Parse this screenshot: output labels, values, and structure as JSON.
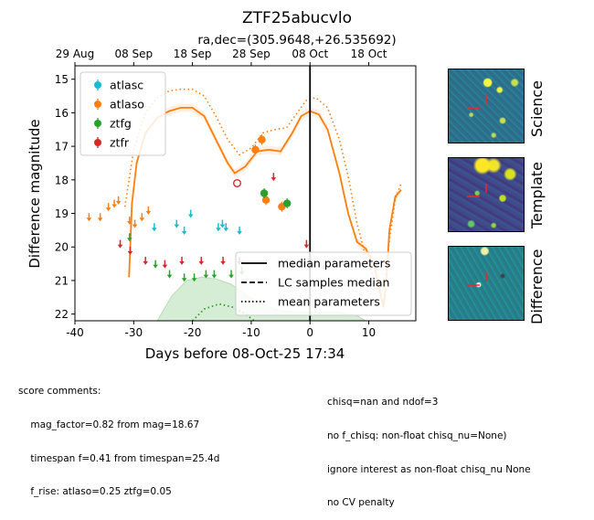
{
  "figure": {
    "title": "ZTF25abucvlo",
    "subtitle": "ra,dec=(305.9648,+26.535692)"
  },
  "colors": {
    "atlasc": "#17becf",
    "atlaso": "#ff7f0e",
    "ztfg": "#2ca02c",
    "ztfr": "#d62728",
    "median_line": "#ff7f0e",
    "g_model": "#2ca02c",
    "now_line": "#000000"
  },
  "chart_data": {
    "type": "scatter",
    "xlabel": "Days before 08-Oct-25 17:34",
    "ylabel": "Difference magnitude",
    "xlim": [
      -40,
      18
    ],
    "ylim": [
      22.2,
      14.6
    ],
    "y_inverted": true,
    "xticks": [
      -40,
      -30,
      -20,
      -10,
      0,
      10
    ],
    "yticks": [
      15,
      16,
      17,
      18,
      19,
      20,
      21,
      22
    ],
    "top_axis": {
      "ticks": [
        {
          "x": -40,
          "label": "29 Aug"
        },
        {
          "x": -30,
          "label": "08 Sep"
        },
        {
          "x": -20,
          "label": "18 Sep"
        },
        {
          "x": -10,
          "label": "28 Sep"
        },
        {
          "x": 0,
          "label": "08 Oct"
        },
        {
          "x": 10,
          "label": "18 Oct"
        }
      ]
    },
    "vertical_line_x": 0,
    "legend_series": {
      "placement": "upper-left",
      "entries": [
        "atlasc",
        "atlaso",
        "ztfg",
        "ztfr"
      ]
    },
    "legend_lines": {
      "placement": "lower-right",
      "entries": [
        {
          "label": "median parameters",
          "style": "solid"
        },
        {
          "label": "LC samples median",
          "style": "dashed"
        },
        {
          "label": "mean parameters",
          "style": "dotted"
        }
      ]
    },
    "series": [
      {
        "name": "atlasc",
        "upper_limits": [
          [
            -26.5,
            19.4
          ],
          [
            -22.7,
            19.3
          ],
          [
            -21.4,
            19.5
          ],
          [
            -20.3,
            19.0
          ],
          [
            -15.6,
            19.4
          ],
          [
            -14.9,
            19.3
          ],
          [
            -14.3,
            19.4
          ],
          [
            -12.0,
            19.5
          ]
        ],
        "detections": []
      },
      {
        "name": "atlaso",
        "upper_limits": [
          [
            -37.6,
            19.1
          ],
          [
            -35.7,
            19.1
          ],
          [
            -34.3,
            18.8
          ],
          [
            -33.3,
            18.7
          ],
          [
            -32.6,
            18.6
          ],
          [
            -30.7,
            19.2
          ],
          [
            -29.8,
            19.3
          ],
          [
            -28.6,
            19.1
          ],
          [
            -27.5,
            18.9
          ]
        ],
        "detections": [
          [
            -9.3,
            17.1,
            0.15
          ],
          [
            -8.2,
            16.8,
            0.15
          ],
          [
            -7.5,
            18.6,
            0.15
          ],
          [
            -4.8,
            18.8,
            0.15
          ]
        ],
        "open_points": []
      },
      {
        "name": "ztfg",
        "upper_limits": [
          [
            -30.7,
            19.7
          ],
          [
            -26.3,
            20.5
          ],
          [
            -23.9,
            20.8
          ],
          [
            -21.4,
            20.9
          ],
          [
            -19.7,
            20.9
          ],
          [
            -17.7,
            20.8
          ],
          [
            -16.3,
            20.8
          ],
          [
            -13.4,
            20.8
          ],
          [
            -11.6,
            20.7
          ],
          [
            -2.9,
            20.5
          ]
        ],
        "detections": [
          [
            -7.8,
            18.4,
            0.15
          ],
          [
            -3.9,
            18.7,
            0.15
          ]
        ]
      },
      {
        "name": "ztfr",
        "upper_limits": [
          [
            -32.3,
            19.9
          ],
          [
            -30.6,
            20.1
          ],
          [
            -28.0,
            20.4
          ],
          [
            -24.7,
            20.5
          ],
          [
            -21.8,
            20.4
          ],
          [
            -18.5,
            20.4
          ],
          [
            -14.8,
            20.4
          ],
          [
            -12.0,
            20.4
          ],
          [
            -6.2,
            17.9
          ],
          [
            -0.6,
            19.9
          ]
        ],
        "detections": [],
        "open_points": [
          [
            -12.4,
            18.1,
            0.1
          ]
        ]
      }
    ],
    "model_curves": {
      "o_median": [
        [
          -30.8,
          20.9
        ],
        [
          -30.3,
          18.7
        ],
        [
          -29.5,
          17.5
        ],
        [
          -28.0,
          16.6
        ],
        [
          -26.0,
          16.15
        ],
        [
          -24.0,
          15.95
        ],
        [
          -22.0,
          15.85
        ],
        [
          -20.0,
          15.85
        ],
        [
          -18.0,
          16.1
        ],
        [
          -16.0,
          16.8
        ],
        [
          -14.0,
          17.5
        ],
        [
          -12.8,
          17.8
        ],
        [
          -11.0,
          17.6
        ],
        [
          -9.0,
          17.15
        ],
        [
          -7.0,
          17.1
        ],
        [
          -5.0,
          17.15
        ],
        [
          -3.0,
          16.6
        ],
        [
          -1.5,
          16.1
        ],
        [
          0.0,
          15.95
        ],
        [
          1.5,
          16.05
        ],
        [
          3.0,
          16.5
        ],
        [
          5.0,
          17.8
        ],
        [
          6.5,
          19.0
        ],
        [
          8.0,
          19.85
        ],
        [
          9.5,
          20.05
        ],
        [
          11.0,
          20.6
        ],
        [
          12.5,
          21.8
        ],
        [
          13.0,
          21.0
        ],
        [
          13.5,
          19.5
        ],
        [
          14.5,
          18.5
        ],
        [
          15.5,
          18.3
        ]
      ],
      "o_mean": [
        [
          -31.5,
          18.8
        ],
        [
          -30.0,
          17.1
        ],
        [
          -28.0,
          16.0
        ],
        [
          -26.0,
          15.55
        ],
        [
          -24.0,
          15.35
        ],
        [
          -22.0,
          15.3
        ],
        [
          -20.0,
          15.3
        ],
        [
          -18.0,
          15.5
        ],
        [
          -16.0,
          16.1
        ],
        [
          -14.0,
          16.8
        ],
        [
          -12.0,
          17.25
        ],
        [
          -10.0,
          17.05
        ],
        [
          -8.0,
          16.6
        ],
        [
          -6.0,
          16.5
        ],
        [
          -4.0,
          16.45
        ],
        [
          -2.0,
          15.95
        ],
        [
          -0.5,
          15.6
        ],
        [
          1.0,
          15.55
        ],
        [
          3.0,
          15.85
        ],
        [
          5.0,
          16.8
        ],
        [
          6.5,
          17.9
        ],
        [
          8.0,
          19.3
        ],
        [
          9.5,
          20.3
        ],
        [
          11.0,
          21.0
        ],
        [
          12.0,
          21.5
        ],
        [
          12.8,
          21.0
        ],
        [
          13.5,
          19.8
        ],
        [
          14.5,
          18.6
        ],
        [
          15.5,
          18.1
        ]
      ],
      "g_mean": [
        [
          -20.0,
          22.2
        ],
        [
          -18.0,
          21.85
        ],
        [
          -15.5,
          21.7
        ],
        [
          -13.0,
          21.8
        ],
        [
          -11.0,
          22.0
        ],
        [
          -9.5,
          22.2
        ]
      ],
      "g_band": [
        [
          -26.0,
          22.2
        ],
        [
          -23.5,
          21.45
        ],
        [
          -21.0,
          21.0
        ],
        [
          -18.5,
          20.9
        ],
        [
          -16.0,
          20.95
        ],
        [
          -13.5,
          21.1
        ],
        [
          -11.0,
          21.4
        ],
        [
          -8.5,
          21.7
        ],
        [
          -5.0,
          21.9
        ],
        [
          0.0,
          21.95
        ],
        [
          5.0,
          21.95
        ],
        [
          8.0,
          22.05
        ],
        [
          9.5,
          22.2
        ]
      ]
    }
  },
  "cutouts": {
    "science": "Science",
    "template": "Template",
    "difference": "Difference"
  },
  "score_comments": {
    "left": [
      "score comments:",
      "    mag_factor=0.82 from mag=18.67",
      "    timespan f=0.41 from timespan=25.4d",
      "    f_rise: atlaso=0.25 ztfg=0.05"
    ],
    "right": [
      "chisq=nan and ndof=3",
      "no f_chisq: non-float chisq_nu=None)",
      "ignore interest as non-float chisq_nu None",
      "no CV penalty"
    ]
  }
}
